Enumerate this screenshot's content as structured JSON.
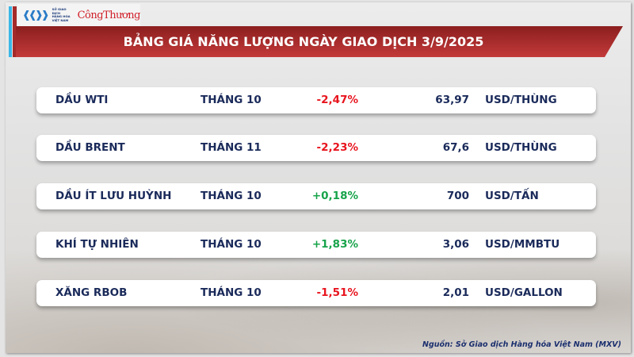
{
  "brand": {
    "exchange": "SỞ GIAO DỊCH HÀNG HÓA VIỆT NAM",
    "exchange_lines": [
      "SỞ GIAO DỊCH",
      "HÀNG HÓA",
      "VIỆT NAM"
    ],
    "publisher": "CôngThương"
  },
  "title": "BẢNG GIÁ NĂNG LƯỢNG NGÀY GIAO DỊCH 3/9/2025",
  "colors": {
    "title_bg": "#b03030",
    "negative": "#e8141e",
    "positive": "#17a34a",
    "text": "#1a2a5a"
  },
  "rows": [
    {
      "name": "DẦU WTI",
      "month": "THÁNG 10",
      "change": "-2,47%",
      "price": "63,97",
      "unit": "USD/THÙNG",
      "dir": "neg"
    },
    {
      "name": "DẦU BRENT",
      "month": "THÁNG 11",
      "change": "-2,23%",
      "price": "67,6",
      "unit": "USD/THÙNG",
      "dir": "neg"
    },
    {
      "name": "DẦU ÍT LƯU HUỲNH",
      "month": "THÁNG 10",
      "change": "+0,18%",
      "price": "700",
      "unit": "USD/TẤN",
      "dir": "pos"
    },
    {
      "name": "KHÍ TỰ NHIÊN",
      "month": "THÁNG 10",
      "change": "+1,83%",
      "price": "3,06",
      "unit": "USD/MMBTU",
      "dir": "pos"
    },
    {
      "name": "XĂNG RBOB",
      "month": "THÁNG 10",
      "change": "-1,51%",
      "price": "2,01",
      "unit": "USD/GALLON",
      "dir": "neg"
    }
  ],
  "source": "Nguồn: Sở Giao dịch Hàng hóa Việt Nam (MXV)"
}
